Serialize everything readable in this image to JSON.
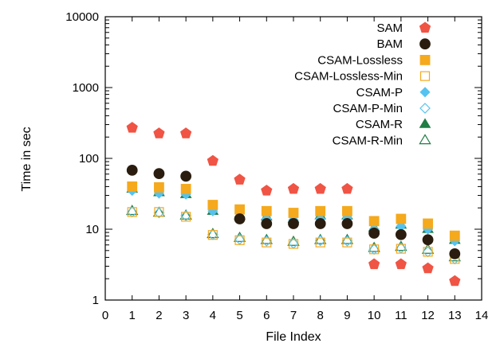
{
  "chart_data": {
    "type": "scatter",
    "xlabel": "File Index",
    "ylabel": "Time in sec",
    "xlim": [
      0,
      14
    ],
    "ylim": [
      1,
      10000
    ],
    "yscale": "log",
    "x_ticks": [
      "0",
      "1",
      "2",
      "3",
      "4",
      "5",
      "6",
      "7",
      "8",
      "9",
      "10",
      "11",
      "12",
      "13",
      "14"
    ],
    "y_ticks": [
      {
        "value": 1,
        "label": "1"
      },
      {
        "value": 10,
        "label": "10"
      },
      {
        "value": 100,
        "label": "100"
      },
      {
        "value": 1000,
        "label": "1000"
      },
      {
        "value": 10000,
        "label": "10000"
      }
    ],
    "legend_position": "top-right",
    "x": [
      1,
      2,
      3,
      4,
      5,
      6,
      7,
      8,
      9,
      10,
      11,
      12,
      13
    ],
    "series": [
      {
        "name": "SAM",
        "marker": "pentagon",
        "filled": true,
        "color": "#f05444",
        "values": [
          270,
          225,
          225,
          92,
          50,
          35,
          37,
          37,
          37,
          3.2,
          3.2,
          2.8,
          1.85
        ]
      },
      {
        "name": "BAM",
        "marker": "circle",
        "filled": true,
        "color": "#2a1d0f",
        "values": [
          68,
          61,
          56,
          null,
          14,
          12,
          12,
          12,
          12,
          8.8,
          8.4,
          7.1,
          4.5
        ]
      },
      {
        "name": "CSAM-Lossless",
        "marker": "square",
        "filled": true,
        "color": "#f5a91d",
        "values": [
          40,
          39,
          37,
          22,
          19,
          18,
          17,
          18,
          18,
          13,
          14,
          12,
          8.1
        ]
      },
      {
        "name": "CSAM-Lossless-Min",
        "marker": "square",
        "filled": false,
        "color": "#f5a91d",
        "values": [
          17.5,
          17.5,
          15,
          8.3,
          7,
          6.5,
          6.2,
          6.5,
          6.5,
          5.2,
          5.3,
          4.8,
          3.8
        ]
      },
      {
        "name": "CSAM-P",
        "marker": "diamond",
        "filled": true,
        "color": "#55c3f0",
        "values": [
          35,
          32,
          31,
          18,
          15,
          14,
          13.5,
          14,
          14.5,
          10,
          11,
          10,
          6.8
        ]
      },
      {
        "name": "CSAM-P-Min",
        "marker": "diamond",
        "filled": false,
        "color": "#55c3f0",
        "values": [
          17.5,
          17,
          15.5,
          8.4,
          7.2,
          6.8,
          6.3,
          6.9,
          6.8,
          5.2,
          5.4,
          4.8,
          3.8
        ]
      },
      {
        "name": "CSAM-R",
        "marker": "triangle",
        "filled": true,
        "color": "#1f7d46",
        "values": [
          37,
          33,
          31,
          18,
          15.5,
          15,
          14,
          15.5,
          15.5,
          10.5,
          11.5,
          10,
          7
        ]
      },
      {
        "name": "CSAM-R-Min",
        "marker": "triangle",
        "filled": false,
        "color": "#1f7d46",
        "values": [
          18,
          17,
          15.5,
          8.5,
          7.5,
          7,
          6.6,
          7,
          7,
          5.4,
          5.6,
          5.1,
          4
        ]
      }
    ]
  }
}
